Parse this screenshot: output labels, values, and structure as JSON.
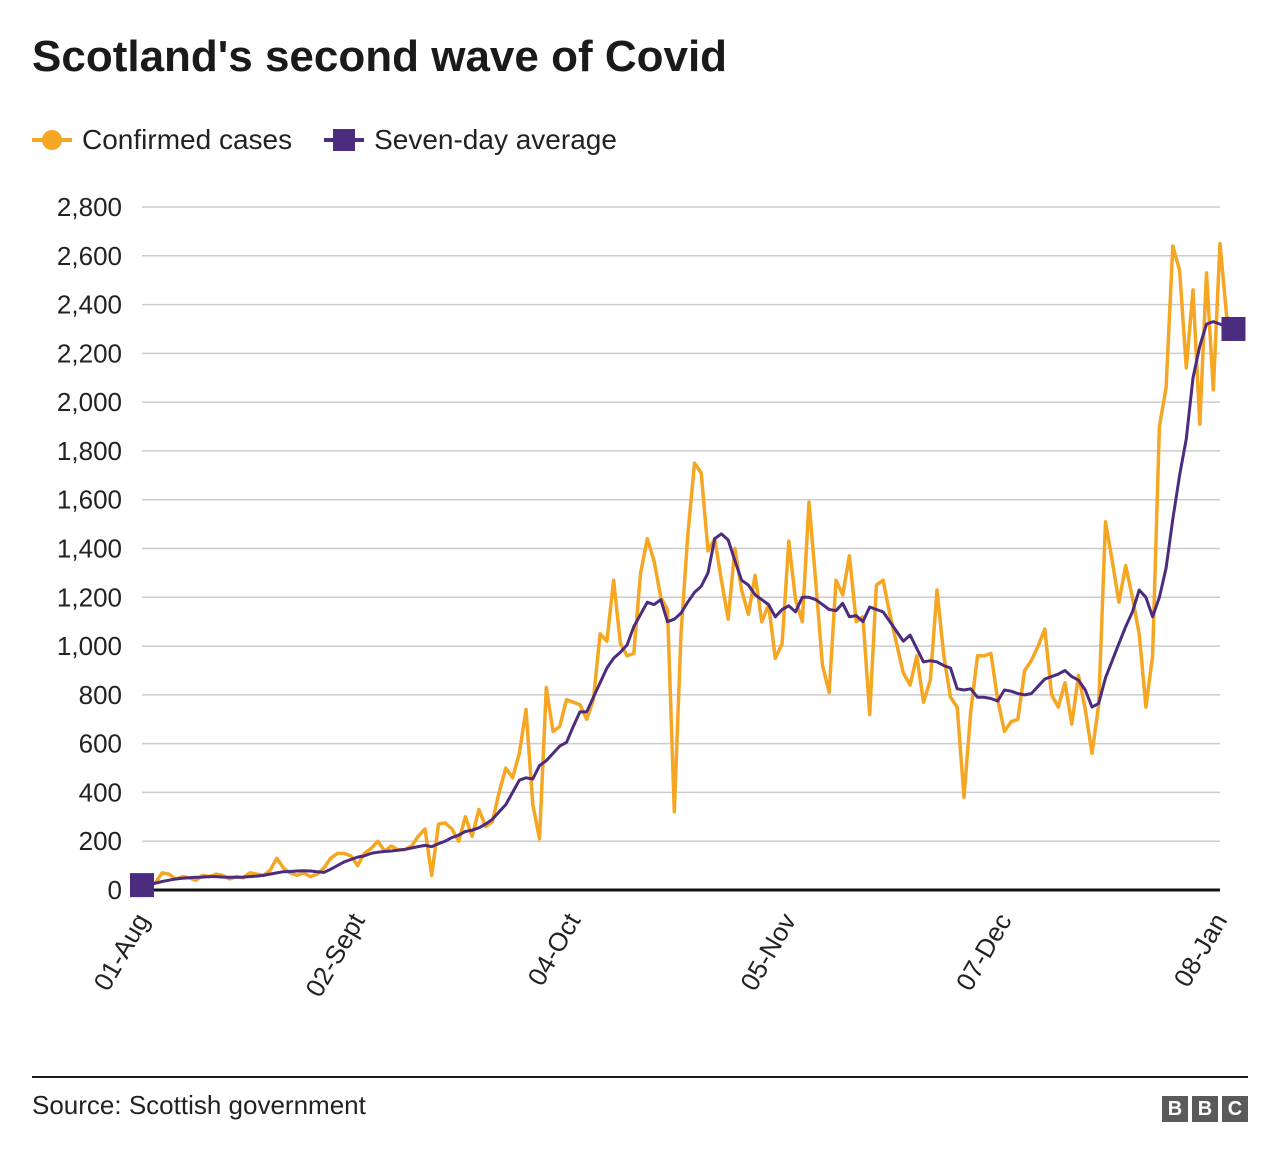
{
  "chart_data": {
    "type": "line",
    "title": "Scotland's second wave of Covid",
    "xlabel": "",
    "ylabel": "",
    "x_tick_labels": [
      {
        "label": "01-Aug",
        "day": 0
      },
      {
        "label": "02-Sept",
        "day": 32
      },
      {
        "label": "04-Oct",
        "day": 64
      },
      {
        "label": "05-Nov",
        "day": 96
      },
      {
        "label": "07-Dec",
        "day": 128
      },
      {
        "label": "08-Jan",
        "day": 160
      }
    ],
    "x_range_days": [
      0,
      160
    ],
    "ylim": [
      0,
      2800
    ],
    "y_ticks": [
      0,
      200,
      400,
      600,
      800,
      1000,
      1200,
      1400,
      1600,
      1800,
      2000,
      2200,
      2400,
      2600,
      2800
    ],
    "y_tick_labels": [
      "0",
      "200",
      "400",
      "600",
      "800",
      "1,000",
      "1,200",
      "1,400",
      "1,600",
      "1,800",
      "2,000",
      "2,200",
      "2,400",
      "2,600",
      "2,800"
    ],
    "grid": true,
    "legend_position": "top-left",
    "series": [
      {
        "name": "Confirmed cases",
        "color": "#f5a623",
        "marker": "circle",
        "values": [
          20,
          15,
          30,
          70,
          65,
          45,
          55,
          50,
          40,
          60,
          55,
          65,
          60,
          45,
          55,
          50,
          70,
          65,
          60,
          80,
          130,
          90,
          70,
          60,
          70,
          55,
          65,
          90,
          130,
          150,
          150,
          140,
          100,
          150,
          170,
          200,
          160,
          180,
          165,
          165,
          180,
          220,
          250,
          60,
          270,
          275,
          250,
          200,
          300,
          220,
          330,
          260,
          280,
          400,
          500,
          460,
          560,
          740,
          350,
          210,
          830,
          650,
          670,
          780,
          770,
          760,
          700,
          780,
          1050,
          1020,
          1270,
          1010,
          960,
          970,
          1300,
          1440,
          1350,
          1200,
          1150,
          320,
          1050,
          1450,
          1750,
          1710,
          1390,
          1440,
          1270,
          1110,
          1400,
          1230,
          1130,
          1290,
          1100,
          1170,
          950,
          1010,
          1430,
          1190,
          1100,
          1590,
          1260,
          920,
          810,
          1270,
          1210,
          1370,
          1100,
          1120,
          720,
          1250,
          1270,
          1130,
          1010,
          890,
          840,
          960,
          770,
          860,
          1230,
          960,
          790,
          750,
          380,
          730,
          960,
          960,
          970,
          780,
          650,
          690,
          700,
          900,
          940,
          1000,
          1070,
          800,
          750,
          850,
          680,
          880,
          740,
          560,
          760,
          1510,
          1350,
          1180,
          1330,
          1200,
          1050,
          750,
          960,
          1900,
          2060,
          2640,
          2540,
          2140,
          2460,
          1910,
          2530,
          2050,
          2650,
          2350,
          2330
        ]
      },
      {
        "name": "Seven-day average",
        "color": "#4b2c7f",
        "marker": "square",
        "values": [
          20,
          22,
          28,
          35,
          40,
          45,
          48,
          50,
          52,
          53,
          55,
          55,
          53,
          52,
          52,
          53,
          55,
          57,
          60,
          65,
          70,
          75,
          76,
          78,
          79,
          78,
          75,
          72,
          85,
          100,
          115,
          125,
          135,
          140,
          150,
          155,
          158,
          160,
          163,
          167,
          172,
          178,
          183,
          178,
          190,
          200,
          215,
          225,
          240,
          245,
          255,
          270,
          290,
          320,
          350,
          400,
          450,
          460,
          455,
          510,
          530,
          560,
          590,
          605,
          670,
          730,
          730,
          790,
          850,
          910,
          950,
          975,
          1005,
          1080,
          1130,
          1180,
          1170,
          1190,
          1100,
          1110,
          1135,
          1180,
          1220,
          1245,
          1300,
          1440,
          1460,
          1435,
          1350,
          1270,
          1250,
          1210,
          1190,
          1170,
          1120,
          1150,
          1165,
          1140,
          1200,
          1200,
          1190,
          1170,
          1150,
          1145,
          1175,
          1120,
          1125,
          1100,
          1160,
          1150,
          1140,
          1100,
          1060,
          1020,
          1045,
          990,
          935,
          940,
          935,
          920,
          910,
          825,
          820,
          825,
          790,
          790,
          785,
          775,
          820,
          815,
          805,
          800,
          805,
          835,
          865,
          875,
          885,
          900,
          875,
          860,
          820,
          750,
          765,
          870,
          940,
          1010,
          1080,
          1140,
          1230,
          1200,
          1120,
          1200,
          1320,
          1520,
          1700,
          1850,
          2100,
          2230,
          2320,
          2330,
          2320,
          2310,
          2300
        ]
      }
    ]
  },
  "source_text": "Source: Scottish government",
  "logo": {
    "letters": [
      "B",
      "B",
      "C"
    ],
    "color": "#5a5a5a"
  }
}
